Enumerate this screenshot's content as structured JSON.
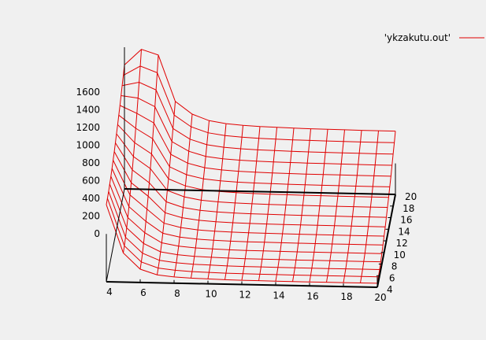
{
  "colors": {
    "background": "#f0f0f0",
    "surface": "#e00000",
    "axis": "#000000"
  },
  "chart_data": {
    "type": "surface",
    "legend": {
      "label": "'ykzakutu.out'",
      "placement": "top-right"
    },
    "x_ticks": [
      "4",
      "6",
      "8",
      "10",
      "12",
      "14",
      "16",
      "18",
      "20"
    ],
    "y_ticks": [
      "4",
      "6",
      "8",
      "10",
      "12",
      "14",
      "16",
      "18",
      "20"
    ],
    "z_ticks": [
      "0",
      "200",
      "400",
      "600",
      "800",
      "1000",
      "1200",
      "1400",
      "1600"
    ],
    "xlim": [
      4,
      20
    ],
    "ylim": [
      4,
      20
    ],
    "zlim": [
      0,
      1600
    ],
    "grid_x": [
      4,
      5,
      6,
      7,
      8,
      9,
      10,
      11,
      12,
      13,
      14,
      15,
      16,
      17,
      18,
      19,
      20
    ],
    "grid_y": [
      4,
      5,
      6,
      7,
      8,
      9,
      10,
      11,
      12,
      13,
      14,
      15,
      16,
      17,
      18,
      19,
      20
    ],
    "z_profile_front": [
      870,
      330,
      150,
      90,
      70,
      60,
      55,
      50,
      48,
      47,
      46,
      45,
      45,
      45,
      45,
      45,
      45
    ],
    "z_profile_back": [
      1400,
      1580,
      1520,
      1000,
      860,
      790,
      760,
      745,
      735,
      730,
      725,
      722,
      720,
      718,
      716,
      715,
      715
    ]
  }
}
